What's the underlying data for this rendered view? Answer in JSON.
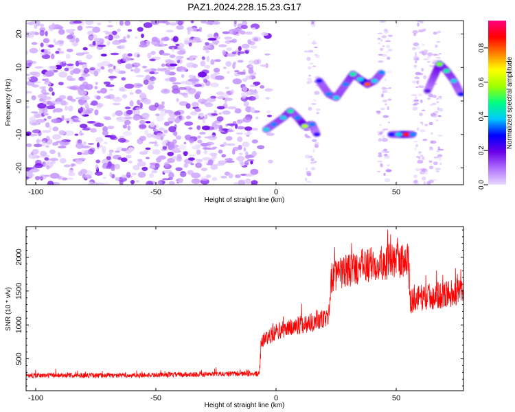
{
  "title": "PAZ1.2024.228.15.23.G17",
  "chart_data": [
    {
      "type": "heatmap",
      "xlabel": "Height of straight line (km)",
      "ylabel": "Frequency (Hz)",
      "xlim": [
        -104,
        78
      ],
      "ylim": [
        -25,
        24
      ],
      "xticks": [
        -100,
        -50,
        0,
        50
      ],
      "yticks": [
        20,
        10,
        0,
        -10,
        -20
      ],
      "colorbar": {
        "label": "Normalized spectral amplitude",
        "range": [
          0,
          0.96
        ],
        "ticks": [
          "0.0",
          "0.2",
          "0.4",
          "0.6",
          "0.8"
        ],
        "tick_values": [
          0,
          0.2,
          0.4,
          0.6,
          0.8
        ],
        "colors": [
          "#e8d8ff",
          "#b070ff",
          "#6a00e8",
          "#0000ff",
          "#00c8ff",
          "#00ff80",
          "#a0ff00",
          "#ffff00",
          "#ff8000",
          "#ff0000",
          "#ff0080"
        ]
      },
      "noise_region_x": [
        -104,
        -8
      ],
      "ridge": [
        {
          "x": -4,
          "y": -8.5,
          "v": 0.4
        },
        {
          "x": -1,
          "y": -7,
          "v": 0.35
        },
        {
          "x": 3,
          "y": -5,
          "v": 0.4
        },
        {
          "x": 6,
          "y": -3,
          "v": 0.45
        },
        {
          "x": 9,
          "y": -5,
          "v": 0.35
        },
        {
          "x": 12,
          "y": -7.5,
          "v": 0.6
        },
        {
          "x": 15,
          "y": -7,
          "v": 0.35
        },
        {
          "x": 17,
          "y": -10,
          "v": 0.25
        },
        {
          "x": 18,
          "y": 6,
          "v": 0.3
        },
        {
          "x": 22,
          "y": 2,
          "v": 0.35
        },
        {
          "x": 25,
          "y": 1,
          "v": 0.4
        },
        {
          "x": 29,
          "y": 5,
          "v": 0.35
        },
        {
          "x": 32,
          "y": 8,
          "v": 0.45
        },
        {
          "x": 35,
          "y": 6.5,
          "v": 0.4
        },
        {
          "x": 38,
          "y": 5,
          "v": 0.8
        },
        {
          "x": 41,
          "y": 6,
          "v": 0.4
        },
        {
          "x": 44,
          "y": 8.5,
          "v": 0.35
        },
        {
          "x": 48,
          "y": -10,
          "v": 0.3
        },
        {
          "x": 51,
          "y": -10,
          "v": 0.4
        },
        {
          "x": 54,
          "y": -10,
          "v": 0.85
        },
        {
          "x": 57,
          "y": -10,
          "v": 0.35
        },
        {
          "x": 63,
          "y": 3,
          "v": 0.2
        },
        {
          "x": 68,
          "y": 11,
          "v": 0.55
        },
        {
          "x": 71,
          "y": 9,
          "v": 0.45
        },
        {
          "x": 74,
          "y": 6,
          "v": 0.4
        },
        {
          "x": 77,
          "y": 2,
          "v": 0.3
        }
      ]
    },
    {
      "type": "line",
      "xlabel": "Height of straight line (km)",
      "ylabel": "SNR (10 * v/v)",
      "xlim": [
        -104,
        78
      ],
      "ylim": [
        30,
        2450
      ],
      "xticks": [
        -100,
        -50,
        0,
        50
      ],
      "yticks": [
        500,
        1000,
        1500,
        2000
      ],
      "color": "#ff0000",
      "series": [
        {
          "x": [
            -104,
            -90,
            -75,
            -60,
            -45,
            -30,
            -15,
            -7,
            -6,
            0,
            10,
            20,
            22,
            23,
            30,
            40,
            50,
            55,
            56,
            60,
            70,
            78
          ],
          "y": [
            250,
            260,
            255,
            255,
            265,
            270,
            280,
            280,
            760,
            900,
            1000,
            1080,
            1150,
            1700,
            1800,
            1900,
            1950,
            1960,
            1350,
            1400,
            1450,
            1500
          ]
        }
      ]
    }
  ]
}
